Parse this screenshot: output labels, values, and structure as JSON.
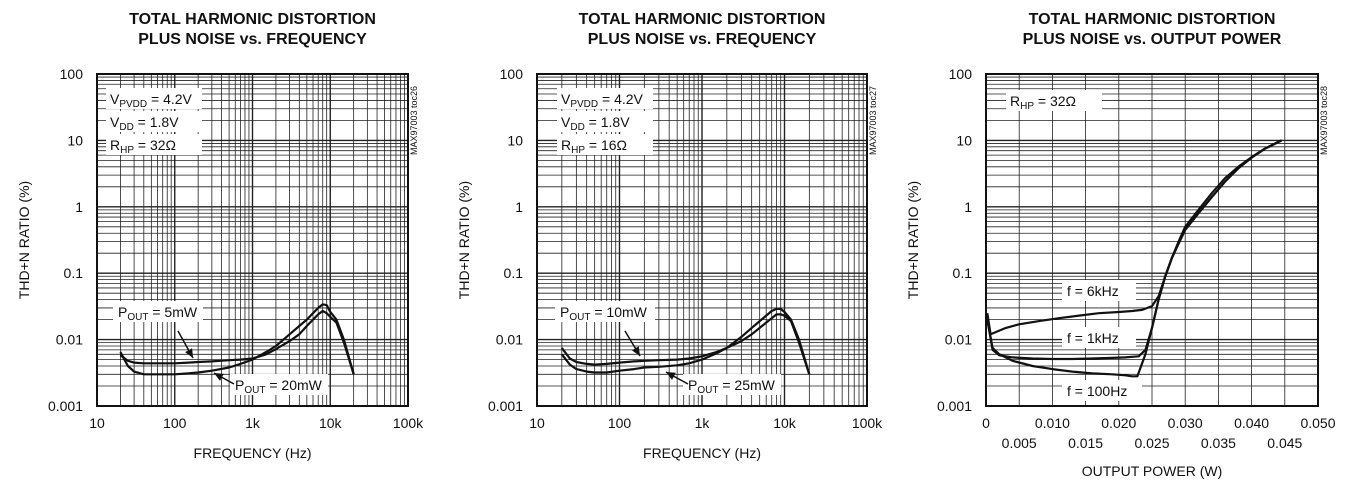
{
  "chart_data": [
    {
      "type": "line",
      "title_lines": [
        "TOTAL HARMONIC DISTORTION",
        "PLUS NOISE vs. FREQUENCY"
      ],
      "xlabel": "FREQUENCY (Hz)",
      "ylabel": "THD+N RATIO (%)",
      "xscale": "log",
      "yscale": "log",
      "xlim": [
        10,
        100000
      ],
      "ylim": [
        0.001,
        100
      ],
      "xticks": [
        "10",
        "100",
        "1k",
        "10k",
        "100k"
      ],
      "yticks": [
        "0.001",
        "0.01",
        "0.1",
        "1",
        "10",
        "100"
      ],
      "tag": "MAX97003 toc26",
      "conditions": [
        {
          "main": "V",
          "sub": "PVDD",
          "rest": " = 4.2V"
        },
        {
          "main": "V",
          "sub": "DD",
          "rest": " = 1.8V"
        },
        {
          "main": "R",
          "sub": "HP",
          "rest": " = 32Ω"
        }
      ],
      "series": [
        {
          "name": "POUT = 5mW",
          "label_main": "P",
          "label_sub": "OUT",
          "label_rest": " = 5mW",
          "x": [
            20,
            25,
            30,
            40,
            50,
            70,
            100,
            150,
            200,
            300,
            500,
            700,
            1000,
            1500,
            2000,
            3000,
            4000,
            5000,
            6000,
            7000,
            8000,
            9000,
            10000,
            12000,
            15000,
            20000
          ],
          "y": [
            0.0058,
            0.0048,
            0.0045,
            0.0044,
            0.0044,
            0.0044,
            0.0044,
            0.0045,
            0.0046,
            0.0047,
            0.0049,
            0.005,
            0.0052,
            0.006,
            0.0072,
            0.0095,
            0.012,
            0.016,
            0.02,
            0.024,
            0.027,
            0.025,
            0.022,
            0.018,
            0.009,
            0.003
          ]
        },
        {
          "name": "POUT = 20mW",
          "label_main": "P",
          "label_sub": "OUT",
          "label_rest": " = 20mW",
          "x": [
            20,
            25,
            30,
            40,
            50,
            70,
            100,
            150,
            200,
            300,
            500,
            700,
            1000,
            1500,
            2000,
            3000,
            4000,
            5000,
            6000,
            7000,
            8000,
            9000,
            10000,
            12000,
            15000,
            20000
          ],
          "y": [
            0.0065,
            0.004,
            0.0033,
            0.003,
            0.003,
            0.003,
            0.003,
            0.0031,
            0.0032,
            0.0034,
            0.0038,
            0.0043,
            0.005,
            0.0065,
            0.008,
            0.012,
            0.016,
            0.02,
            0.025,
            0.03,
            0.034,
            0.033,
            0.026,
            0.02,
            0.01,
            0.003
          ]
        }
      ]
    },
    {
      "type": "line",
      "title_lines": [
        "TOTAL HARMONIC DISTORTION",
        "PLUS NOISE vs. FREQUENCY"
      ],
      "xlabel": "FREQUENCY (Hz)",
      "ylabel": "THD+N RATIO (%)",
      "xscale": "log",
      "yscale": "log",
      "xlim": [
        10,
        100000
      ],
      "ylim": [
        0.001,
        100
      ],
      "xticks": [
        "10",
        "100",
        "1k",
        "10k",
        "100k"
      ],
      "yticks": [
        "0.001",
        "0.01",
        "0.1",
        "1",
        "10",
        "100"
      ],
      "tag": "MAX97003 toc27",
      "conditions": [
        {
          "main": "V",
          "sub": "PVDD",
          "rest": " = 4.2V"
        },
        {
          "main": "V",
          "sub": "DD",
          "rest": " = 1.8V"
        },
        {
          "main": "R",
          "sub": "HP",
          "rest": " = 16Ω"
        }
      ],
      "series": [
        {
          "name": "POUT = 10mW",
          "label_main": "P",
          "label_sub": "OUT",
          "label_rest": " = 10mW",
          "x": [
            20,
            25,
            30,
            40,
            50,
            70,
            100,
            150,
            200,
            300,
            500,
            700,
            1000,
            1500,
            2000,
            3000,
            4000,
            5000,
            6000,
            7000,
            8000,
            9000,
            10000,
            12000,
            15000,
            20000
          ],
          "y": [
            0.0075,
            0.0052,
            0.0046,
            0.0043,
            0.0042,
            0.0043,
            0.0045,
            0.0047,
            0.0048,
            0.0049,
            0.005,
            0.0052,
            0.0056,
            0.0065,
            0.0075,
            0.0095,
            0.012,
            0.015,
            0.018,
            0.021,
            0.024,
            0.024,
            0.023,
            0.019,
            0.009,
            0.003
          ]
        },
        {
          "name": "POUT = 25mW",
          "label_main": "P",
          "label_sub": "OUT",
          "label_rest": " = 25mW",
          "x": [
            20,
            25,
            30,
            40,
            50,
            70,
            100,
            150,
            200,
            300,
            500,
            700,
            1000,
            1500,
            2000,
            3000,
            4000,
            5000,
            6000,
            7000,
            8000,
            9000,
            10000,
            12000,
            15000,
            20000
          ],
          "y": [
            0.006,
            0.0042,
            0.0036,
            0.0033,
            0.0032,
            0.0032,
            0.0034,
            0.0036,
            0.0038,
            0.0039,
            0.0041,
            0.0044,
            0.005,
            0.0062,
            0.0075,
            0.011,
            0.015,
            0.019,
            0.023,
            0.027,
            0.029,
            0.029,
            0.026,
            0.02,
            0.01,
            0.003
          ]
        }
      ]
    },
    {
      "type": "line",
      "title_lines": [
        "TOTAL HARMONIC DISTORTION",
        "PLUS NOISE vs. OUTPUT POWER"
      ],
      "xlabel": "OUTPUT POWER (W)",
      "ylabel": "THD+N RATIO (%)",
      "xscale": "linear",
      "yscale": "log",
      "xlim": [
        0,
        0.05
      ],
      "ylim": [
        0.001,
        100
      ],
      "xticks_top": [
        "0",
        "0.010",
        "0.020",
        "0.030",
        "0.040",
        "0.050"
      ],
      "xticks_bottom": [
        "0.005",
        "0.015",
        "0.025",
        "0.035",
        "0.045"
      ],
      "yticks": [
        "0.001",
        "0.01",
        "0.1",
        "1",
        "10",
        "100"
      ],
      "tag": "MAX97003 toc28",
      "conditions": [
        {
          "main": "R",
          "sub": "HP",
          "rest": " = 32Ω"
        }
      ],
      "series": [
        {
          "name": "f = 6kHz",
          "label": "f = 6kHz",
          "x": [
            0.0002,
            0.0007,
            0.0015,
            0.003,
            0.005,
            0.008,
            0.011,
            0.014,
            0.017,
            0.02,
            0.022,
            0.0235,
            0.025,
            0.026,
            0.027,
            0.028,
            0.029,
            0.03,
            0.032,
            0.034,
            0.036,
            0.038,
            0.04,
            0.042,
            0.0445
          ],
          "y": [
            0.025,
            0.012,
            0.013,
            0.015,
            0.017,
            0.019,
            0.021,
            0.023,
            0.025,
            0.026,
            0.027,
            0.028,
            0.032,
            0.045,
            0.09,
            0.17,
            0.3,
            0.5,
            0.9,
            1.6,
            2.7,
            4.0,
            5.6,
            7.5,
            10
          ]
        },
        {
          "name": "f = 1kHz",
          "label": "f = 1kHz",
          "x": [
            0.0002,
            0.001,
            0.002,
            0.004,
            0.007,
            0.01,
            0.013,
            0.016,
            0.019,
            0.021,
            0.022,
            0.023,
            0.024,
            0.025,
            0.026,
            0.027,
            0.028,
            0.029,
            0.03,
            0.032,
            0.034,
            0.036,
            0.038,
            0.04,
            0.042,
            0.0445
          ],
          "y": [
            0.02,
            0.007,
            0.0058,
            0.0054,
            0.0052,
            0.0051,
            0.0051,
            0.0052,
            0.0053,
            0.0054,
            0.0055,
            0.0056,
            0.007,
            0.015,
            0.04,
            0.09,
            0.17,
            0.28,
            0.45,
            0.8,
            1.4,
            2.4,
            3.8,
            5.5,
            7.5,
            10
          ]
        },
        {
          "name": "f = 100Hz",
          "label": "f = 100Hz",
          "x": [
            0.0002,
            0.001,
            0.002,
            0.004,
            0.007,
            0.01,
            0.013,
            0.016,
            0.019,
            0.021,
            0.022,
            0.0228,
            0.024,
            0.025,
            0.026,
            0.027,
            0.028,
            0.029,
            0.03,
            0.032,
            0.034,
            0.036,
            0.038,
            0.04,
            0.042,
            0.0445
          ],
          "y": [
            0.02,
            0.0075,
            0.006,
            0.0048,
            0.004,
            0.0036,
            0.0033,
            0.0031,
            0.003,
            0.0029,
            0.0028,
            0.0028,
            0.006,
            0.015,
            0.04,
            0.09,
            0.17,
            0.28,
            0.45,
            0.8,
            1.4,
            2.4,
            3.8,
            5.5,
            7.5,
            10
          ]
        }
      ]
    }
  ]
}
